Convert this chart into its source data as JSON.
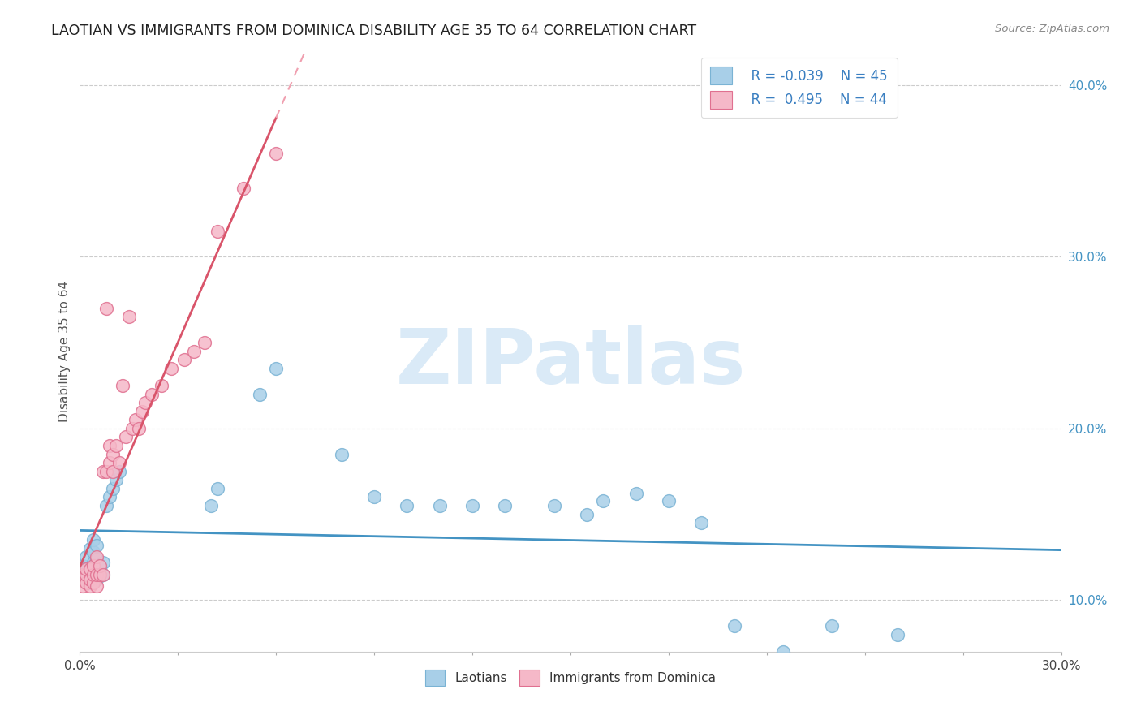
{
  "title": "LAOTIAN VS IMMIGRANTS FROM DOMINICA DISABILITY AGE 35 TO 64 CORRELATION CHART",
  "source_text": "Source: ZipAtlas.com",
  "ylabel": "Disability Age 35 to 64",
  "legend_r1": "R = -0.039",
  "legend_n1": "N = 45",
  "legend_r2": "R =  0.495",
  "legend_n2": "N = 44",
  "color_blue": "#a8cfe8",
  "color_blue_edge": "#7ab3d4",
  "color_pink": "#f5b8c8",
  "color_pink_edge": "#e07090",
  "color_blue_line": "#4393c3",
  "color_pink_line": "#d9546a",
  "color_pink_dash": "#f0a0b0",
  "watermark": "ZIPatlas",
  "watermark_color": "#daeaf7",
  "background_color": "#ffffff",
  "title_fontsize": 12.5,
  "xlim": [
    0.0,
    0.3
  ],
  "ylim": [
    0.07,
    0.42
  ],
  "ytick_vals": [
    0.1,
    0.2,
    0.3,
    0.4
  ],
  "ytick_labels": [
    "10.0%",
    "20.0%",
    "30.0%",
    "40.0%"
  ],
  "xtick_vals": [
    0.0,
    0.03,
    0.06,
    0.09,
    0.12,
    0.15,
    0.18,
    0.21,
    0.24,
    0.27,
    0.3
  ],
  "blue_x": [
    0.001,
    0.001,
    0.002,
    0.002,
    0.002,
    0.003,
    0.003,
    0.003,
    0.004,
    0.004,
    0.004,
    0.004,
    0.005,
    0.005,
    0.005,
    0.005,
    0.006,
    0.006,
    0.007,
    0.007,
    0.008,
    0.009,
    0.01,
    0.011,
    0.012,
    0.04,
    0.042,
    0.055,
    0.06,
    0.08,
    0.09,
    0.1,
    0.11,
    0.12,
    0.13,
    0.145,
    0.155,
    0.16,
    0.17,
    0.18,
    0.19,
    0.2,
    0.215,
    0.23,
    0.25
  ],
  "blue_y": [
    0.115,
    0.12,
    0.112,
    0.118,
    0.125,
    0.11,
    0.118,
    0.13,
    0.115,
    0.122,
    0.128,
    0.135,
    0.112,
    0.118,
    0.124,
    0.132,
    0.115,
    0.12,
    0.115,
    0.122,
    0.155,
    0.16,
    0.165,
    0.17,
    0.175,
    0.155,
    0.165,
    0.22,
    0.235,
    0.185,
    0.16,
    0.155,
    0.155,
    0.155,
    0.155,
    0.155,
    0.15,
    0.158,
    0.162,
    0.158,
    0.145,
    0.085,
    0.07,
    0.085,
    0.08
  ],
  "pink_x": [
    0.001,
    0.001,
    0.001,
    0.002,
    0.002,
    0.002,
    0.003,
    0.003,
    0.003,
    0.004,
    0.004,
    0.004,
    0.005,
    0.005,
    0.005,
    0.006,
    0.006,
    0.007,
    0.007,
    0.008,
    0.008,
    0.009,
    0.009,
    0.01,
    0.01,
    0.011,
    0.012,
    0.013,
    0.014,
    0.015,
    0.016,
    0.017,
    0.018,
    0.019,
    0.02,
    0.022,
    0.025,
    0.028,
    0.032,
    0.035,
    0.038,
    0.042,
    0.05,
    0.06
  ],
  "pink_y": [
    0.115,
    0.112,
    0.108,
    0.11,
    0.115,
    0.118,
    0.108,
    0.112,
    0.118,
    0.11,
    0.115,
    0.12,
    0.108,
    0.115,
    0.125,
    0.115,
    0.12,
    0.115,
    0.175,
    0.175,
    0.27,
    0.18,
    0.19,
    0.175,
    0.185,
    0.19,
    0.18,
    0.225,
    0.195,
    0.265,
    0.2,
    0.205,
    0.2,
    0.21,
    0.215,
    0.22,
    0.225,
    0.235,
    0.24,
    0.245,
    0.25,
    0.315,
    0.34,
    0.36
  ]
}
